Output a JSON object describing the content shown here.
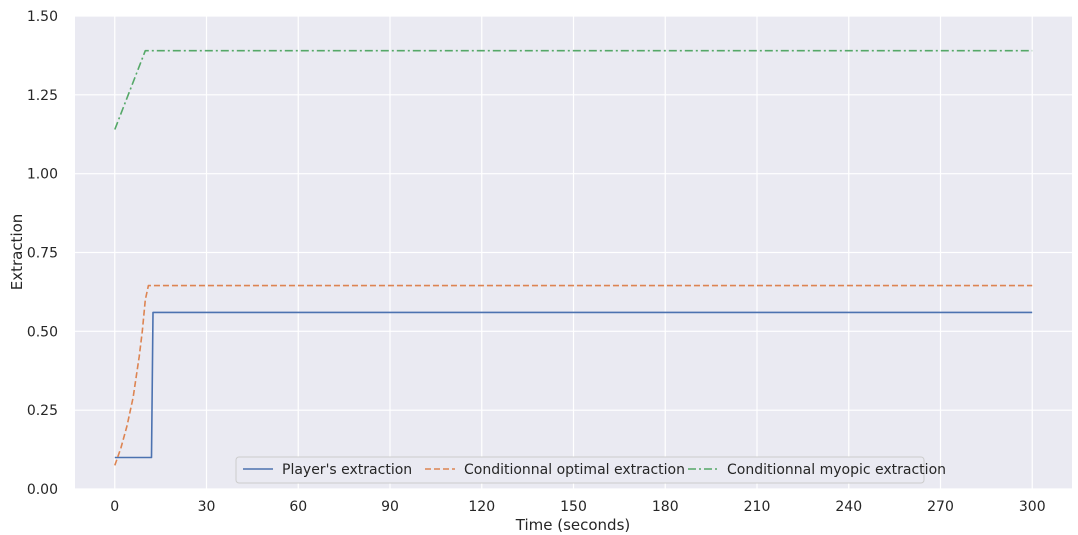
{
  "chart_data": {
    "type": "line",
    "xlabel": "Time (seconds)",
    "ylabel": "Extraction",
    "xlim": [
      -13,
      313
    ],
    "ylim": [
      0,
      1.5
    ],
    "xticks": [
      0,
      30,
      60,
      90,
      120,
      150,
      180,
      210,
      240,
      270,
      300
    ],
    "xtick_labels": [
      "0",
      "30",
      "60",
      "90",
      "120",
      "150",
      "180",
      "210",
      "240",
      "270",
      "300"
    ],
    "yticks": [
      0,
      0.25,
      0.5,
      0.75,
      1.0,
      1.25,
      1.5
    ],
    "ytick_labels": [
      "0.00",
      "0.25",
      "0.50",
      "0.75",
      "1.00",
      "1.25",
      "1.50"
    ],
    "grid": true,
    "legend_position": "bottom-center",
    "series": [
      {
        "name": "Player's extraction",
        "color": "#4c72b0",
        "style": "solid",
        "x": [
          0,
          12,
          12.5,
          300
        ],
        "y": [
          0.1,
          0.1,
          0.56,
          0.56
        ]
      },
      {
        "name": "Conditionnal optimal extraction",
        "color": "#dd8452",
        "style": "dashed",
        "x": [
          0,
          2,
          4,
          6,
          8,
          9,
          10,
          11,
          300
        ],
        "y": [
          0.075,
          0.13,
          0.2,
          0.29,
          0.42,
          0.5,
          0.6,
          0.645,
          0.645
        ]
      },
      {
        "name": "Conditionnal myopic extraction",
        "color": "#55a868",
        "style": "dashdot",
        "x": [
          0,
          10,
          300
        ],
        "y": [
          1.14,
          1.39,
          1.39
        ]
      }
    ]
  }
}
